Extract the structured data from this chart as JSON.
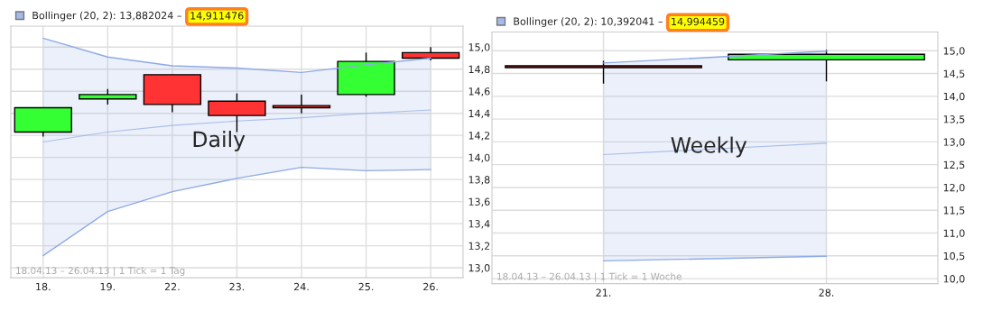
{
  "chart_data": [
    {
      "type": "candlestick",
      "categories": [
        "18.",
        "19.",
        "22.",
        "23.",
        "24.",
        "25.",
        "26."
      ],
      "ohlc": [
        [
          14.23,
          14.45,
          14.19,
          14.45
        ],
        [
          14.53,
          14.62,
          14.48,
          14.57
        ],
        [
          14.75,
          14.75,
          14.41,
          14.48
        ],
        [
          14.51,
          14.58,
          14.23,
          14.38
        ],
        [
          14.47,
          14.57,
          14.4,
          14.45
        ],
        [
          14.57,
          14.95,
          14.55,
          14.87
        ],
        [
          14.95,
          15.0,
          14.88,
          14.9
        ]
      ],
      "colors": [
        "#33ff33",
        "#33ff33",
        "#ff3333",
        "#ff3333",
        "#ff3333",
        "#33ff33",
        "#ff3333"
      ],
      "series": [
        {
          "type": "line",
          "name": "Bollinger (20, 2): 13,882024 –",
          "color": "#8eaae6",
          "values": [
            14.14,
            14.23,
            14.29,
            14.33,
            14.36,
            14.4,
            14.43
          ],
          "lower": [
            13.11,
            13.51,
            13.69,
            13.81,
            13.91,
            13.88,
            13.89
          ],
          "upper": [
            15.08,
            14.91,
            14.83,
            14.81,
            14.77,
            14.84,
            14.9
          ]
        },
        {
          "type": "line",
          "color": "#8eaae6",
          "values": [
            15.08,
            14.91,
            14.83,
            14.81,
            14.77,
            14.84,
            14.9
          ]
        },
        {
          "type": "line",
          "color": "#8eaae6",
          "values": [
            13.11,
            13.51,
            13.69,
            13.81,
            13.91,
            13.88,
            13.89
          ]
        }
      ],
      "ylim": [
        12.91,
        15.19
      ],
      "yticks": [
        {
          "value": 13.0,
          "label": "13,0"
        },
        {
          "value": 13.2,
          "label": "13,2"
        },
        {
          "value": 13.4,
          "label": "13,4"
        },
        {
          "value": 13.6,
          "label": "13,6"
        },
        {
          "value": 13.8,
          "label": "13,8"
        },
        {
          "value": 14.0,
          "label": "14,0"
        },
        {
          "value": 14.2,
          "label": "14,2"
        },
        {
          "value": 14.4,
          "label": "14,4"
        },
        {
          "value": 14.6,
          "label": "14,6"
        },
        {
          "value": 14.8,
          "label": "14,8"
        },
        {
          "value": 15.0,
          "label": "15,0"
        }
      ],
      "grid": true,
      "legend": "top left",
      "annotations": [
        "Daily",
        "18.04.13 – 26.04.13 | 1 Tick = 1 Tag",
        "14,911476"
      ]
    },
    {
      "type": "candlestick",
      "categories": [
        "21.",
        "28."
      ],
      "ohlc": [
        [
          14.67,
          14.78,
          14.28,
          14.63
        ],
        [
          14.8,
          15.02,
          14.33,
          14.92
        ]
      ],
      "colors": [
        "#ff3333",
        "#33ff33"
      ],
      "series": [
        {
          "type": "line",
          "name": "Bollinger (20, 2): 10,392041 –",
          "color": "#8eaae6",
          "values": [
            12.72,
            12.97
          ],
          "lower": [
            10.39,
            10.49
          ],
          "upper": [
            14.73,
            14.99
          ]
        },
        {
          "type": "line",
          "color": "#8eaae6",
          "values": [
            14.73,
            14.99
          ]
        },
        {
          "type": "line",
          "color": "#8eaae6",
          "values": [
            10.39,
            10.49
          ]
        }
      ],
      "ylim": [
        9.89,
        15.41
      ],
      "yticks": [
        {
          "value": 10.0,
          "label": "10,0"
        },
        {
          "value": 10.5,
          "label": "10,5"
        },
        {
          "value": 11.0,
          "label": "11,0"
        },
        {
          "value": 11.5,
          "label": "11,5"
        },
        {
          "value": 12.0,
          "label": "12,0"
        },
        {
          "value": 12.5,
          "label": "12,5"
        },
        {
          "value": 13.0,
          "label": "13,0"
        },
        {
          "value": 13.5,
          "label": "13,5"
        },
        {
          "value": 14.0,
          "label": "14,0"
        },
        {
          "value": 14.5,
          "label": "14,5"
        },
        {
          "value": 15.0,
          "label": "15,0"
        }
      ],
      "grid": true,
      "legend": "top left",
      "annotations": [
        "Weekly",
        "18.04.13 – 26.04.13 | 1 Tick = 1 Woche",
        "14,994459"
      ]
    }
  ]
}
